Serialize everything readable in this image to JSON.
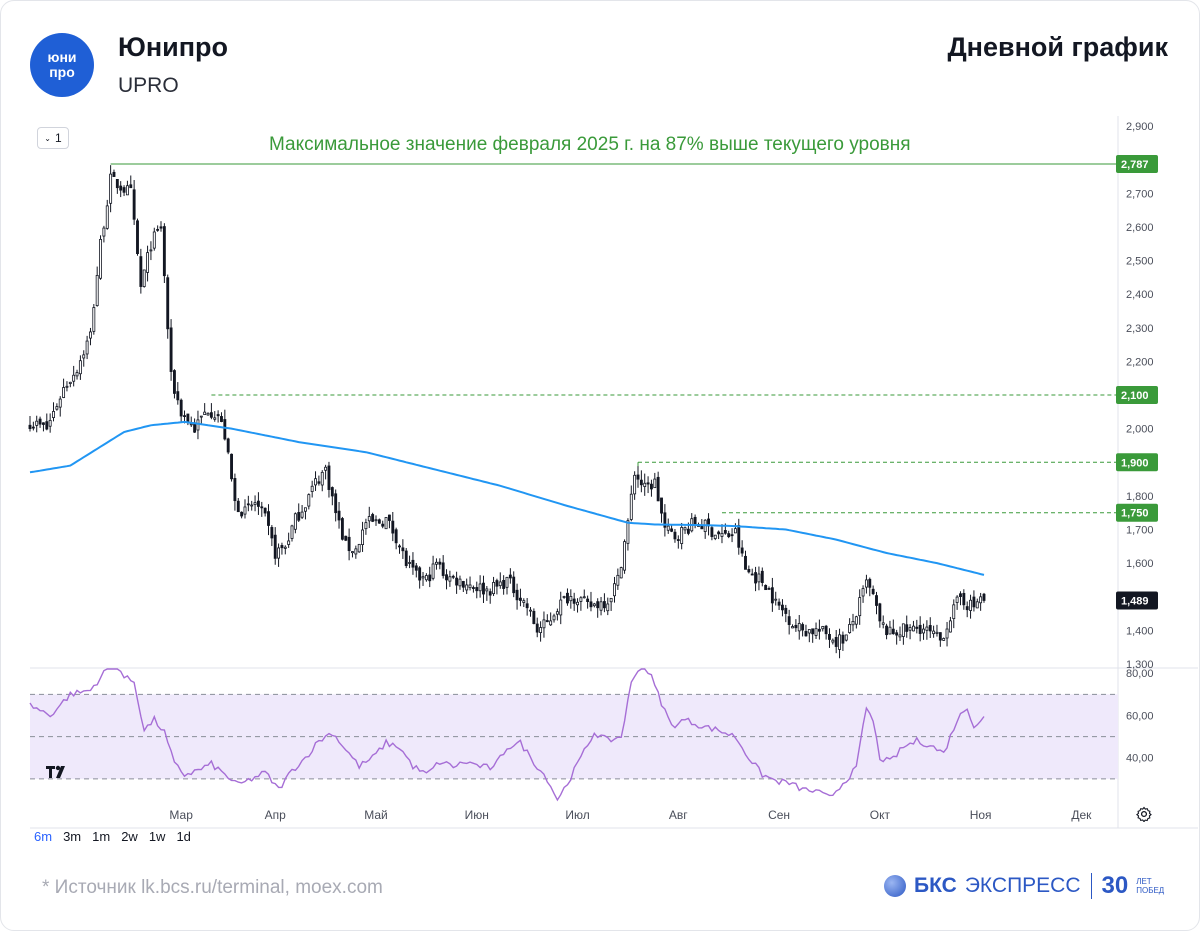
{
  "header": {
    "logo_line1": "юни",
    "logo_line2": "про",
    "company": "Юнипро",
    "ticker": "UPRO",
    "chart_type_title": "Дневной график"
  },
  "toolbar": {
    "interval_label": "1"
  },
  "annotation": "Максимальное значение февраля 2025 г. на 87% выше текущего уровня",
  "periods": [
    "6m",
    "3m",
    "1m",
    "2w",
    "1w",
    "1d"
  ],
  "active_period": "6m",
  "footer": {
    "source": "*  Источник lk.bcs.ru/terminal, moex.com",
    "brand_bold": "БКС",
    "brand_rest": "ЭКСПРЕСС",
    "brand_years": "30",
    "brand_small1": "ЛЕТ",
    "brand_small2": "ПОБЕД"
  },
  "colors": {
    "candle": "#131722",
    "ma_line": "#2196f3",
    "level_line": "#3a9a3a",
    "rsi_line": "#a66ed6",
    "rsi_band": "#efe9fb",
    "price_badge": "#131722"
  },
  "chart_data": [
    {
      "type": "candlestick",
      "name": "UPRO",
      "yaxis_ticks": [
        "2,900",
        "2,800",
        "2,700",
        "2,600",
        "2,500",
        "2,400",
        "2,300",
        "2,200",
        "2,100",
        "2,000",
        "1,900",
        "1,800",
        "1,700",
        "1,600",
        "1,500",
        "1,400",
        "1,300"
      ],
      "ylim": [
        1.3,
        2.9
      ],
      "month_labels": [
        "Мар",
        "Апр",
        "Май",
        "Июн",
        "Июл",
        "Авг",
        "Сен",
        "Окт",
        "Ноя",
        "Дек"
      ],
      "months_x": [
        {
          "label": "Мар",
          "day": 45
        },
        {
          "label": "Апр",
          "day": 73
        },
        {
          "label": "Май",
          "day": 103
        },
        {
          "label": "Июн",
          "day": 133
        },
        {
          "label": "Июл",
          "day": 163
        },
        {
          "label": "Авг",
          "day": 193
        },
        {
          "label": "Сен",
          "day": 223
        },
        {
          "label": "Окт",
          "day": 253
        },
        {
          "label": "Ноя",
          "day": 283
        },
        {
          "label": "Дек",
          "day": 313
        }
      ],
      "x_range_days": [
        0,
        323
      ],
      "close_anchors": [
        {
          "day": 0,
          "close": 2.02
        },
        {
          "day": 5,
          "close": 2.0
        },
        {
          "day": 10,
          "close": 2.12
        },
        {
          "day": 14,
          "close": 2.18
        },
        {
          "day": 18,
          "close": 2.28
        },
        {
          "day": 21,
          "close": 2.55
        },
        {
          "day": 24,
          "close": 2.74
        },
        {
          "day": 27,
          "close": 2.72
        },
        {
          "day": 30,
          "close": 2.7
        },
        {
          "day": 33,
          "close": 2.42
        },
        {
          "day": 36,
          "close": 2.55
        },
        {
          "day": 39,
          "close": 2.6
        },
        {
          "day": 42,
          "close": 2.15
        },
        {
          "day": 45,
          "close": 2.05
        },
        {
          "day": 49,
          "close": 2.0
        },
        {
          "day": 53,
          "close": 2.06
        },
        {
          "day": 56,
          "close": 2.04
        },
        {
          "day": 58,
          "close": 1.98
        },
        {
          "day": 61,
          "close": 1.78
        },
        {
          "day": 64,
          "close": 1.75
        },
        {
          "day": 67,
          "close": 1.78
        },
        {
          "day": 70,
          "close": 1.73
        },
        {
          "day": 73,
          "close": 1.63
        },
        {
          "day": 76,
          "close": 1.65
        },
        {
          "day": 79,
          "close": 1.73
        },
        {
          "day": 82,
          "close": 1.78
        },
        {
          "day": 85,
          "close": 1.84
        },
        {
          "day": 88,
          "close": 1.88
        },
        {
          "day": 91,
          "close": 1.75
        },
        {
          "day": 94,
          "close": 1.65
        },
        {
          "day": 97,
          "close": 1.64
        },
        {
          "day": 100,
          "close": 1.72
        },
        {
          "day": 103,
          "close": 1.72
        },
        {
          "day": 106,
          "close": 1.73
        },
        {
          "day": 109,
          "close": 1.68
        },
        {
          "day": 112,
          "close": 1.6
        },
        {
          "day": 115,
          "close": 1.56
        },
        {
          "day": 118,
          "close": 1.55
        },
        {
          "day": 121,
          "close": 1.6
        },
        {
          "day": 124,
          "close": 1.56
        },
        {
          "day": 127,
          "close": 1.55
        },
        {
          "day": 130,
          "close": 1.54
        },
        {
          "day": 133,
          "close": 1.53
        },
        {
          "day": 136,
          "close": 1.52
        },
        {
          "day": 139,
          "close": 1.53
        },
        {
          "day": 142,
          "close": 1.55
        },
        {
          "day": 145,
          "close": 1.51
        },
        {
          "day": 148,
          "close": 1.47
        },
        {
          "day": 151,
          "close": 1.4
        },
        {
          "day": 154,
          "close": 1.42
        },
        {
          "day": 157,
          "close": 1.47
        },
        {
          "day": 160,
          "close": 1.5
        },
        {
          "day": 163,
          "close": 1.5
        },
        {
          "day": 166,
          "close": 1.47
        },
        {
          "day": 169,
          "close": 1.48
        },
        {
          "day": 172,
          "close": 1.49
        },
        {
          "day": 175,
          "close": 1.55
        },
        {
          "day": 178,
          "close": 1.72
        },
        {
          "day": 180,
          "close": 1.87
        },
        {
          "day": 183,
          "close": 1.82
        },
        {
          "day": 186,
          "close": 1.84
        },
        {
          "day": 189,
          "close": 1.7
        },
        {
          "day": 192,
          "close": 1.68
        },
        {
          "day": 195,
          "close": 1.7
        },
        {
          "day": 198,
          "close": 1.72
        },
        {
          "day": 201,
          "close": 1.71
        },
        {
          "day": 204,
          "close": 1.69
        },
        {
          "day": 207,
          "close": 1.68
        },
        {
          "day": 210,
          "close": 1.69
        },
        {
          "day": 213,
          "close": 1.58
        },
        {
          "day": 216,
          "close": 1.56
        },
        {
          "day": 219,
          "close": 1.54
        },
        {
          "day": 222,
          "close": 1.48
        },
        {
          "day": 225,
          "close": 1.45
        },
        {
          "day": 228,
          "close": 1.41
        },
        {
          "day": 231,
          "close": 1.4
        },
        {
          "day": 234,
          "close": 1.4
        },
        {
          "day": 237,
          "close": 1.39
        },
        {
          "day": 240,
          "close": 1.37
        },
        {
          "day": 243,
          "close": 1.38
        },
        {
          "day": 246,
          "close": 1.45
        },
        {
          "day": 249,
          "close": 1.54
        },
        {
          "day": 251,
          "close": 1.5
        },
        {
          "day": 253,
          "close": 1.42
        },
        {
          "day": 256,
          "close": 1.39
        },
        {
          "day": 259,
          "close": 1.4
        },
        {
          "day": 262,
          "close": 1.4
        },
        {
          "day": 265,
          "close": 1.41
        },
        {
          "day": 268,
          "close": 1.39
        },
        {
          "day": 271,
          "close": 1.37
        },
        {
          "day": 274,
          "close": 1.44
        },
        {
          "day": 277,
          "close": 1.5
        },
        {
          "day": 279,
          "close": 1.48
        },
        {
          "day": 281,
          "close": 1.47
        },
        {
          "day": 283,
          "close": 1.5
        },
        {
          "day": 284,
          "close": 1.489
        }
      ],
      "moving_average": [
        {
          "day": 0,
          "value": 1.87
        },
        {
          "day": 12,
          "value": 1.89
        },
        {
          "day": 20,
          "value": 1.94
        },
        {
          "day": 28,
          "value": 1.99
        },
        {
          "day": 36,
          "value": 2.01
        },
        {
          "day": 46,
          "value": 2.02
        },
        {
          "day": 60,
          "value": 2.0
        },
        {
          "day": 80,
          "value": 1.96
        },
        {
          "day": 100,
          "value": 1.93
        },
        {
          "day": 120,
          "value": 1.88
        },
        {
          "day": 140,
          "value": 1.83
        },
        {
          "day": 160,
          "value": 1.77
        },
        {
          "day": 178,
          "value": 1.72
        },
        {
          "day": 186,
          "value": 1.715
        },
        {
          "day": 200,
          "value": 1.713
        },
        {
          "day": 210,
          "value": 1.71
        },
        {
          "day": 225,
          "value": 1.7
        },
        {
          "day": 240,
          "value": 1.67
        },
        {
          "day": 255,
          "value": 1.63
        },
        {
          "day": 270,
          "value": 1.6
        },
        {
          "day": 284,
          "value": 1.565
        }
      ],
      "levels": [
        {
          "label": "2,787",
          "value": 2.787,
          "style": "solid"
        },
        {
          "label": "2,100",
          "value": 2.1,
          "style": "dashed"
        },
        {
          "label": "1,900",
          "value": 1.9,
          "style": "dashed"
        },
        {
          "label": "1,750",
          "value": 1.75,
          "style": "dashed"
        }
      ],
      "last_price_label": "1,489",
      "last_price": 1.489
    },
    {
      "type": "line",
      "name": "RSI",
      "yaxis_ticks": [
        "80,00",
        "60,00",
        "40,00"
      ],
      "ylim": [
        20,
        82
      ],
      "bands": [
        70,
        50,
        30
      ],
      "values": [
        {
          "day": 0,
          "value": 65
        },
        {
          "day": 6,
          "value": 60
        },
        {
          "day": 12,
          "value": 70
        },
        {
          "day": 18,
          "value": 72
        },
        {
          "day": 22,
          "value": 80
        },
        {
          "day": 25,
          "value": 87
        },
        {
          "day": 28,
          "value": 78
        },
        {
          "day": 31,
          "value": 76
        },
        {
          "day": 34,
          "value": 53
        },
        {
          "day": 37,
          "value": 58
        },
        {
          "day": 40,
          "value": 52
        },
        {
          "day": 43,
          "value": 37
        },
        {
          "day": 46,
          "value": 32
        },
        {
          "day": 50,
          "value": 34
        },
        {
          "day": 54,
          "value": 37
        },
        {
          "day": 58,
          "value": 32
        },
        {
          "day": 62,
          "value": 27
        },
        {
          "day": 66,
          "value": 30
        },
        {
          "day": 70,
          "value": 33
        },
        {
          "day": 74,
          "value": 25
        },
        {
          "day": 78,
          "value": 34
        },
        {
          "day": 82,
          "value": 40
        },
        {
          "day": 86,
          "value": 48
        },
        {
          "day": 90,
          "value": 52
        },
        {
          "day": 94,
          "value": 44
        },
        {
          "day": 98,
          "value": 36
        },
        {
          "day": 102,
          "value": 40
        },
        {
          "day": 106,
          "value": 47
        },
        {
          "day": 110,
          "value": 45
        },
        {
          "day": 114,
          "value": 36
        },
        {
          "day": 118,
          "value": 32
        },
        {
          "day": 122,
          "value": 38
        },
        {
          "day": 126,
          "value": 36
        },
        {
          "day": 130,
          "value": 38
        },
        {
          "day": 134,
          "value": 36
        },
        {
          "day": 138,
          "value": 35
        },
        {
          "day": 142,
          "value": 45
        },
        {
          "day": 146,
          "value": 47
        },
        {
          "day": 150,
          "value": 38
        },
        {
          "day": 154,
          "value": 30
        },
        {
          "day": 157,
          "value": 20
        },
        {
          "day": 160,
          "value": 28
        },
        {
          "day": 164,
          "value": 40
        },
        {
          "day": 168,
          "value": 52
        },
        {
          "day": 172,
          "value": 48
        },
        {
          "day": 176,
          "value": 50
        },
        {
          "day": 179,
          "value": 75
        },
        {
          "day": 182,
          "value": 86
        },
        {
          "day": 185,
          "value": 78
        },
        {
          "day": 188,
          "value": 66
        },
        {
          "day": 191,
          "value": 55
        },
        {
          "day": 195,
          "value": 58
        },
        {
          "day": 200,
          "value": 55
        },
        {
          "day": 205,
          "value": 53
        },
        {
          "day": 210,
          "value": 50
        },
        {
          "day": 214,
          "value": 40
        },
        {
          "day": 218,
          "value": 32
        },
        {
          "day": 222,
          "value": 29
        },
        {
          "day": 226,
          "value": 28
        },
        {
          "day": 230,
          "value": 25
        },
        {
          "day": 234,
          "value": 24
        },
        {
          "day": 238,
          "value": 21
        },
        {
          "day": 242,
          "value": 28
        },
        {
          "day": 246,
          "value": 35
        },
        {
          "day": 249,
          "value": 64
        },
        {
          "day": 251,
          "value": 57
        },
        {
          "day": 253,
          "value": 40
        },
        {
          "day": 256,
          "value": 38
        },
        {
          "day": 260,
          "value": 45
        },
        {
          "day": 264,
          "value": 48
        },
        {
          "day": 268,
          "value": 46
        },
        {
          "day": 272,
          "value": 42
        },
        {
          "day": 276,
          "value": 58
        },
        {
          "day": 279,
          "value": 64
        },
        {
          "day": 281,
          "value": 55
        },
        {
          "day": 284,
          "value": 59
        }
      ]
    }
  ]
}
